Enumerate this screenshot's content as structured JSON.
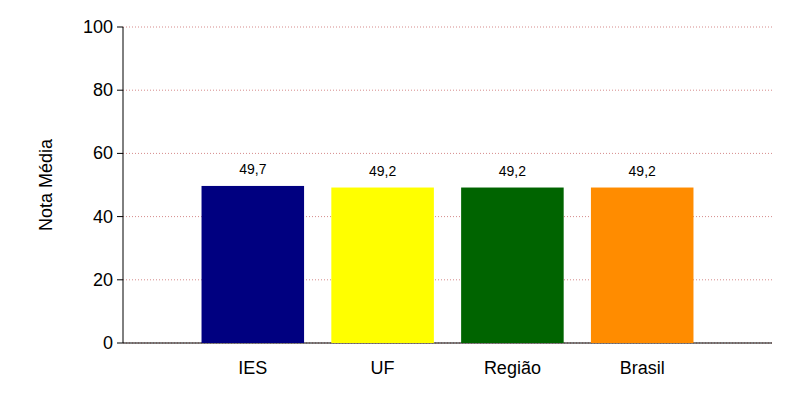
{
  "chart_data": {
    "type": "bar",
    "y_label": "Nota Média",
    "categories": [
      "IES",
      "UF",
      "Região",
      "Brasil"
    ],
    "values": [
      49.7,
      49.2,
      49.2,
      49.2
    ],
    "value_labels": [
      "49,7",
      "49,2",
      "49,2",
      "49,2"
    ],
    "colors": [
      "#000080",
      "#ffff00",
      "#006400",
      "#ff8c00"
    ],
    "ylim": [
      0,
      100
    ],
    "yticks": [
      0,
      20,
      40,
      60,
      80,
      100
    ],
    "grid": true,
    "data_labels": true
  }
}
